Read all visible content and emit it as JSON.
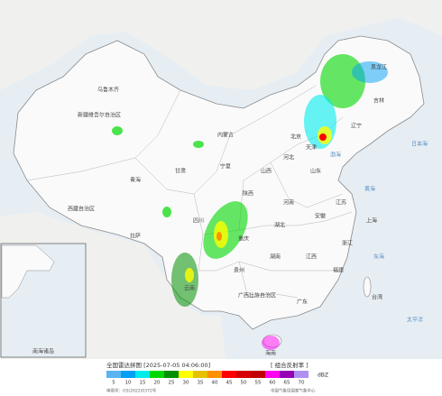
{
  "map_labels": [
    "新疆维吾尔自治区",
    "西藏自治区",
    "青海",
    "甘肃",
    "内蒙古",
    "黑龙江",
    "吉林",
    "辽宁",
    "北京",
    "天津",
    "河北",
    "山西",
    "山东",
    "陕西",
    "宁夏",
    "四川",
    "重庆",
    "贵州",
    "云南",
    "广西壮族自治区",
    "广东",
    "湖南",
    "湖北",
    "河南",
    "江苏",
    "安徽",
    "浙江",
    "江西",
    "福建",
    "台湾",
    "海南",
    "上海",
    "黄海",
    "东海",
    "太平洋",
    "日本海",
    "渤海",
    "乌鲁木齐",
    "拉萨",
    "南海诸岛"
  ],
  "legend": {
    "title": "全国雷达拼图 [2025-07-05 04:06:00]",
    "product": "[ 组合反射率 ]",
    "unit": "dBZ",
    "levels": [
      5,
      10,
      15,
      20,
      25,
      30,
      35,
      40,
      45,
      50,
      55,
      60,
      65,
      70
    ],
    "colors": [
      "#5ab4f0",
      "#01a0f6",
      "#00ecec",
      "#00d800",
      "#019000",
      "#ffff00",
      "#e7c000",
      "#ff9000",
      "#ff0000",
      "#d60000",
      "#c00000",
      "#ff00f0",
      "#9600b4",
      "#ad90f0"
    ]
  },
  "footer": {
    "approval": "审图号：GS(2022)0372号",
    "source": "中国气象局国家气象中心"
  }
}
